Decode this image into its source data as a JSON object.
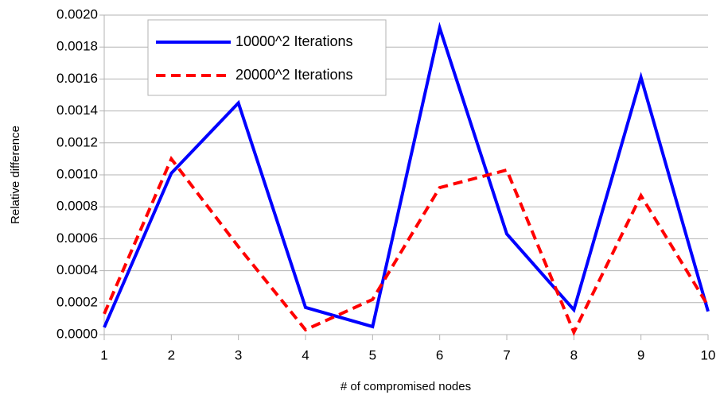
{
  "chart_data": {
    "type": "line",
    "xlabel": "# of compromised nodes",
    "ylabel": "Relative difference",
    "x": [
      1,
      2,
      3,
      4,
      5,
      6,
      7,
      8,
      9,
      10
    ],
    "series": [
      {
        "name": "10000^2 Iterations",
        "color": "#0000ff",
        "dash": "solid",
        "values": [
          4.5e-05,
          0.00101,
          0.00145,
          0.00017,
          5e-05,
          0.00192,
          0.00063,
          0.000155,
          0.00161,
          0.000145
        ]
      },
      {
        "name": "20000^2 Iterations",
        "color": "#ff0000",
        "dash": "dashed",
        "values": [
          0.00013,
          0.0011,
          0.00055,
          3e-05,
          0.00022,
          0.00092,
          0.00103,
          1.5e-05,
          0.00087,
          0.00018
        ]
      }
    ],
    "xlim": [
      1,
      10
    ],
    "xticks": [
      1,
      2,
      3,
      4,
      5,
      6,
      7,
      8,
      9,
      10
    ],
    "ylim": [
      0,
      0.002
    ],
    "yticks": [
      {
        "value": 0,
        "label": "0.0000"
      },
      {
        "value": 0.0002,
        "label": "0.0002"
      },
      {
        "value": 0.0004,
        "label": "0.0004"
      },
      {
        "value": 0.0006,
        "label": "0.0006"
      },
      {
        "value": 0.0008,
        "label": "0.0008"
      },
      {
        "value": 0.001,
        "label": "0.0010"
      },
      {
        "value": 0.0012,
        "label": "0.0012"
      },
      {
        "value": 0.0014,
        "label": "0.0014"
      },
      {
        "value": 0.0016,
        "label": "0.0016"
      },
      {
        "value": 0.0018,
        "label": "0.0018"
      },
      {
        "value": 0.002,
        "label": "0.0020"
      }
    ],
    "grid": true,
    "legend": "upper left"
  }
}
